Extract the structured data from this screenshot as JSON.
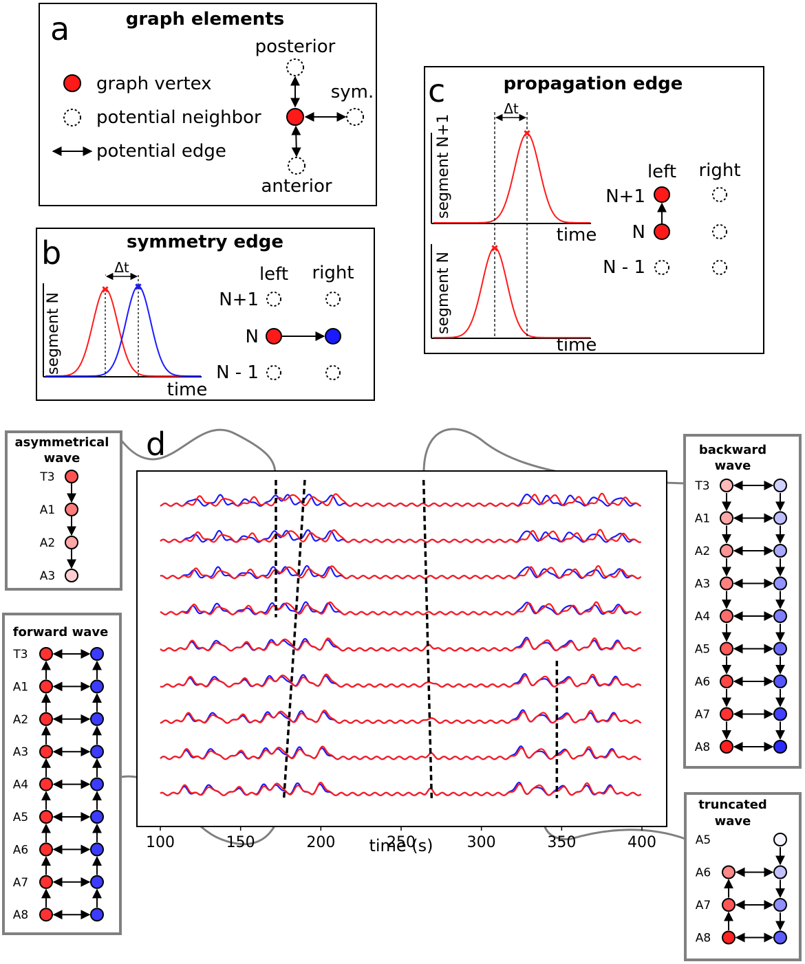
{
  "panel_a": {
    "letter": "a",
    "title": "graph elements",
    "legend_vertex": "graph vertex",
    "legend_neighbor": "potential neighbor",
    "legend_edge": "potential edge",
    "posterior": "posterior",
    "anterior": "anterior",
    "sym": "sym."
  },
  "panel_b": {
    "letter": "b",
    "title": "symmetry edge",
    "ylabel": "segment N",
    "xlabel": "time",
    "dt": "Δt",
    "col_left": "left",
    "col_right": "right",
    "rows": [
      "N+1",
      "N",
      "N - 1"
    ]
  },
  "panel_c": {
    "letter": "c",
    "title": "propagation edge",
    "ylabel_top": "segment N+1",
    "ylabel_bottom": "segment N",
    "xlabel_top": "time",
    "xlabel_bottom": "time",
    "dt": "Δt",
    "col_left": "left",
    "col_right": "right",
    "rows": [
      "N+1",
      "N",
      "N - 1"
    ]
  },
  "panel_d": {
    "letter": "d",
    "chart_data": {
      "type": "line",
      "title": "",
      "xlabel": "time (s)",
      "ylabel": "",
      "xlim": [
        85,
        415
      ],
      "xticks": [
        "100",
        "150",
        "200",
        "250",
        "300",
        "350",
        "400"
      ],
      "traces": 9,
      "series": [
        {
          "name": "left",
          "color": "#ff1a1a"
        },
        {
          "name": "right",
          "color": "#1a1aff"
        }
      ],
      "wave_markers": [
        {
          "name": "asymmetrical wave",
          "x_top": 172,
          "x_bottom": 172,
          "traces": [
            1,
            4
          ]
        },
        {
          "name": "forward wave",
          "x_top": 190,
          "x_bottom": 177,
          "traces": [
            1,
            9
          ]
        },
        {
          "name": "backward wave",
          "x_top": 264,
          "x_bottom": 269,
          "traces": [
            1,
            9
          ]
        },
        {
          "name": "truncated wave",
          "x_top": 347,
          "x_bottom": 347,
          "traces": [
            6,
            9
          ]
        }
      ]
    }
  },
  "waves": {
    "asymmetrical": {
      "title_1": "asymmetrical",
      "title_2": "wave",
      "labels": [
        "T3",
        "A1",
        "A2",
        "A3"
      ]
    },
    "forward": {
      "title_1": "forward wave",
      "labels": [
        "T3",
        "A1",
        "A2",
        "A3",
        "A4",
        "A5",
        "A6",
        "A7",
        "A8"
      ]
    },
    "backward": {
      "title_1": "backward",
      "title_2": "wave",
      "labels": [
        "T3",
        "A1",
        "A2",
        "A3",
        "A4",
        "A5",
        "A6",
        "A7",
        "A8"
      ]
    },
    "truncated": {
      "title_1": "truncated",
      "title_2": "wave",
      "labels": [
        "A5",
        "A6",
        "A7",
        "A8"
      ]
    }
  },
  "colors": {
    "red": "#ff1a1a",
    "blue": "#1a1aff",
    "box_gray": "#808080"
  }
}
